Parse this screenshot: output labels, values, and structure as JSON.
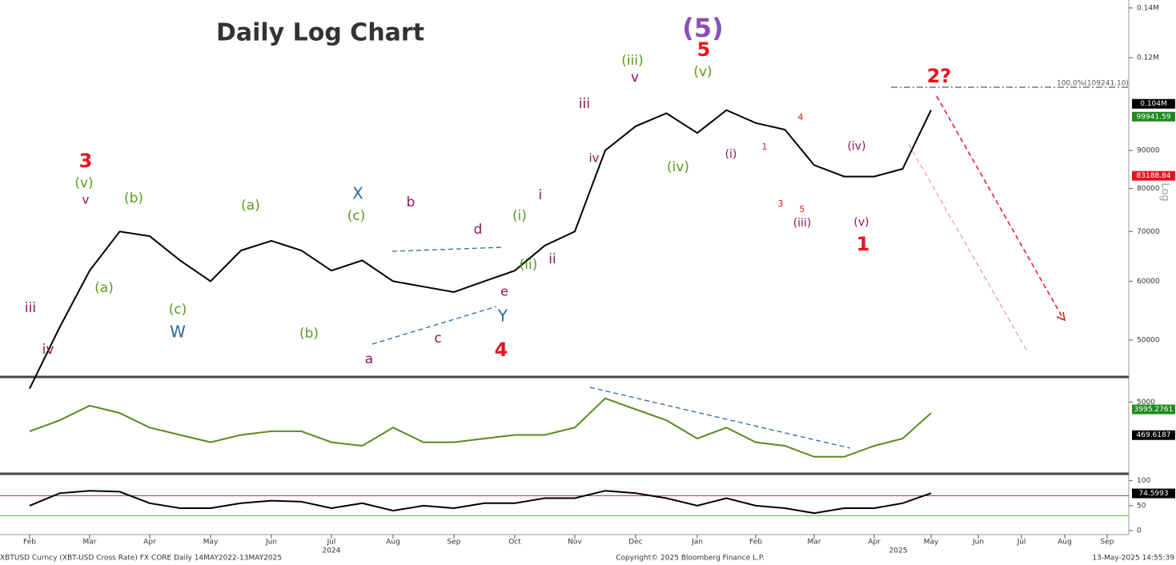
{
  "chart_data": [
    {
      "type": "line",
      "scale": "log",
      "series": [
        {
          "name": "XBTUSD",
          "color": "#000000",
          "values": [
            43000,
            52000,
            62000,
            70000,
            69000,
            64000,
            60000,
            66000,
            68000,
            66000,
            62000,
            64000,
            60000,
            59000,
            58000,
            60000,
            62000,
            67000,
            70000,
            90000,
            97000,
            101000,
            95000,
            102000,
            98000,
            96000,
            86000,
            83000,
            83000,
            85000,
            102000,
            null,
            null,
            null,
            null,
            null,
            null,
            null,
            null
          ]
        }
      ],
      "ylim": [
        44700,
        143500
      ],
      "yticks": [
        50000,
        60000,
        70000,
        80000,
        90000,
        {
          "value": 120000,
          "label": "0.12M"
        },
        {
          "value": 140000,
          "label": "0.14M"
        }
      ],
      "tags": [
        {
          "value": 104000,
          "label": "0.104M",
          "color": "#000000"
        },
        {
          "value": 99941.59,
          "label": "99941.59",
          "color": "#1f8a1f"
        },
        {
          "value": 83188.84,
          "label": "83188.84",
          "color": "#e8141e"
        }
      ],
      "axis_label": "Log"
    },
    {
      "type": "line",
      "series": [
        {
          "name": "MACD",
          "color": "#5a8a1e",
          "values": [
            1000,
            2500,
            4500,
            3500,
            1500,
            500,
            -500,
            500,
            1000,
            1000,
            -500,
            -1000,
            1500,
            -500,
            -500,
            0,
            500,
            500,
            1500,
            5500,
            4000,
            2500,
            0,
            1500,
            -500,
            -1000,
            -2500,
            -2500,
            -1000,
            0,
            3500,
            null,
            null,
            null,
            null,
            null,
            null,
            null,
            null
          ]
        }
      ],
      "ylim": [
        -4600,
        8000
      ],
      "yticks": [
        5000
      ],
      "tags": [
        {
          "value": 3995.2761,
          "label": "3995.2761",
          "color": "#1f8a1f"
        },
        {
          "value": 469.6187,
          "label": "469.6187",
          "color": "#000000"
        }
      ]
    },
    {
      "type": "line",
      "series": [
        {
          "name": "RSI",
          "color": "#000000",
          "values": [
            50,
            75,
            80,
            78,
            55,
            45,
            45,
            55,
            60,
            58,
            45,
            55,
            40,
            50,
            45,
            55,
            55,
            65,
            65,
            80,
            75,
            65,
            50,
            65,
            50,
            45,
            35,
            45,
            45,
            55,
            75,
            null,
            null,
            null,
            null,
            null,
            null,
            null,
            null
          ]
        }
      ],
      "ylim": [
        -8,
        106
      ],
      "yticks": [
        0,
        50,
        100
      ],
      "reference_lines": [
        {
          "value": 70,
          "color": "#e8141e"
        },
        {
          "value": 30,
          "color": "#3cc43c"
        }
      ],
      "tags": [
        {
          "value": 74.5993,
          "label": "74.5993",
          "color": "#000000"
        }
      ],
      "categories": [
        "Feb",
        null,
        "Mar",
        null,
        "Apr",
        null,
        "May",
        null,
        "Jun",
        null,
        "Jul",
        null,
        "Aug",
        null,
        "Sep",
        null,
        "Oct",
        null,
        "Nov",
        null,
        "Dec",
        null,
        "Jan",
        null,
        "Feb",
        null,
        "Mar",
        null,
        "Apr",
        null,
        "May",
        null,
        "Jun",
        null,
        "Jul",
        null,
        "Aug",
        null,
        "Sep"
      ],
      "year_labels": [
        "2024",
        "2025"
      ]
    }
  ],
  "annotations": [
    {
      "text": "Daily Log Chart",
      "color": "#333333"
    },
    {
      "text": "(5)",
      "color": "#8a4fb5"
    },
    {
      "text": "5",
      "color": "#e8141e"
    },
    {
      "text": "(iii)",
      "color": "#5a9a1e"
    },
    {
      "text": "v",
      "color": "#8b1560"
    },
    {
      "text": "(v)",
      "color": "#5a9a1e"
    },
    {
      "text": "iii",
      "color": "#8b1560"
    },
    {
      "text": "iv",
      "color": "#8b1560"
    },
    {
      "text": "(iv)",
      "color": "#5a9a1e"
    },
    {
      "text": "i",
      "color": "#8b1560"
    },
    {
      "text": "ii",
      "color": "#8b1560"
    },
    {
      "text": "(i)",
      "color": "#5a9a1e"
    },
    {
      "text": "(ii)",
      "color": "#5a9a1e"
    },
    {
      "text": "X",
      "color": "#2a6aa8"
    },
    {
      "text": "(c)",
      "color": "#5a9a1e"
    },
    {
      "text": "b",
      "color": "#8b1560"
    },
    {
      "text": "d",
      "color": "#8b1560"
    },
    {
      "text": "e",
      "color": "#8b1560"
    },
    {
      "text": "Y",
      "color": "#2a6aa8"
    },
    {
      "text": "4",
      "color": "#e8141e"
    },
    {
      "text": "a",
      "color": "#8b1560"
    },
    {
      "text": "c",
      "color": "#8b1560"
    },
    {
      "text": "(b)",
      "color": "#5a9a1e"
    },
    {
      "text": "(a)",
      "color": "#5a9a1e"
    },
    {
      "text": "3",
      "color": "#e8141e"
    },
    {
      "text": "(v)",
      "color": "#5a9a1e"
    },
    {
      "text": "v",
      "color": "#8b1560"
    },
    {
      "text": "iii",
      "color": "#8b1560"
    },
    {
      "text": "iv",
      "color": "#8b1560"
    },
    {
      "text": "(a)",
      "color": "#5a9a1e"
    },
    {
      "text": "(c)",
      "color": "#5a9a1e"
    },
    {
      "text": "W",
      "color": "#2a6aa8"
    },
    {
      "text": "(b)",
      "color": "#5a9a1e"
    },
    {
      "text": "2?",
      "color": "#e8141e"
    },
    {
      "text": "4",
      "color": "#e8141e"
    },
    {
      "text": "(i)",
      "color": "#8b1560"
    },
    {
      "text": "1",
      "color": "#e8141e"
    },
    {
      "text": "3",
      "color": "#e8141e"
    },
    {
      "text": "5",
      "color": "#e8141e"
    },
    {
      "text": "(iii)",
      "color": "#8b1560"
    },
    {
      "text": "(iv)",
      "color": "#8b1560"
    },
    {
      "text": "(v)",
      "color": "#8b1560"
    },
    {
      "text": "1",
      "color": "#e8141e"
    },
    {
      "text": "100.0%(109241.10)",
      "color": "#555555"
    }
  ],
  "footer": {
    "left": "XBTUSD Curncy (XBT-USD Cross Rate) FX CORE  Daily 14MAY2022-13MAY2025",
    "center": "Copyright© 2025 Bloomberg Finance L.P.",
    "right": "13-May-2025 14:55:39"
  }
}
